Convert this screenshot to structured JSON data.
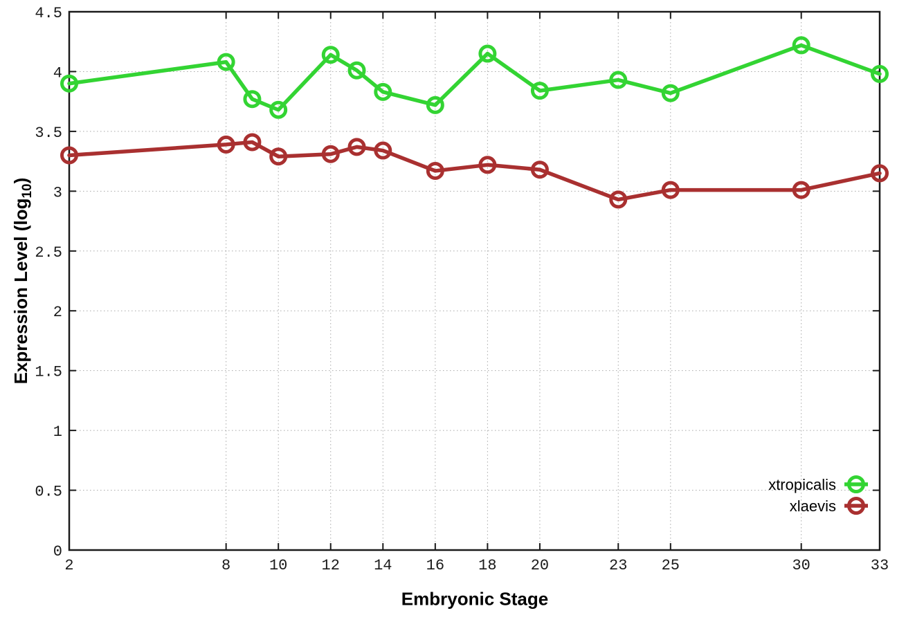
{
  "chart_data": {
    "type": "line",
    "title": "",
    "xlabel": "Embryonic Stage",
    "ylabel": "Expression Level (log10)",
    "ylabel_parts": {
      "pre": "Expression Level (log",
      "sub": "10",
      "post": ")"
    },
    "xlim": [
      2,
      33
    ],
    "ylim": [
      0,
      4.5
    ],
    "grid": true,
    "grid_style": "dotted",
    "legend_position": "bottom-right",
    "x_ticks": [
      {
        "value": 2,
        "label": "2"
      },
      {
        "value": 8,
        "label": "8"
      },
      {
        "value": 10,
        "label": "10"
      },
      {
        "value": 12,
        "label": "12"
      },
      {
        "value": 14,
        "label": "14"
      },
      {
        "value": 16,
        "label": "16"
      },
      {
        "value": 18,
        "label": "18"
      },
      {
        "value": 20,
        "label": "20"
      },
      {
        "value": 23,
        "label": "23"
      },
      {
        "value": 25,
        "label": "25"
      },
      {
        "value": 30,
        "label": "30"
      },
      {
        "value": 33,
        "label": "33"
      }
    ],
    "y_ticks": [
      {
        "value": 0,
        "label": "0"
      },
      {
        "value": 0.5,
        "label": "0.5"
      },
      {
        "value": 1,
        "label": "1"
      },
      {
        "value": 1.5,
        "label": "1.5"
      },
      {
        "value": 2,
        "label": "2"
      },
      {
        "value": 2.5,
        "label": "2.5"
      },
      {
        "value": 3,
        "label": "3"
      },
      {
        "value": 3.5,
        "label": "3.5"
      },
      {
        "value": 4,
        "label": "4"
      },
      {
        "value": 4.5,
        "label": "4.5"
      }
    ],
    "x": [
      2,
      8,
      9,
      10,
      12,
      13,
      14,
      16,
      18,
      20,
      23,
      25,
      30,
      33
    ],
    "series": [
      {
        "name": "xtropicalis",
        "color": "#33d433",
        "marker": "open-circle",
        "values": [
          3.9,
          4.08,
          3.77,
          3.68,
          4.14,
          4.01,
          3.83,
          3.72,
          4.15,
          3.84,
          3.93,
          3.82,
          4.22,
          3.98
        ]
      },
      {
        "name": "xlaevis",
        "color": "#a93030",
        "marker": "open-circle",
        "values": [
          3.3,
          3.39,
          3.41,
          3.29,
          3.31,
          3.37,
          3.34,
          3.17,
          3.22,
          3.18,
          2.93,
          3.01,
          3.01,
          3.15
        ]
      }
    ]
  },
  "style": {
    "border_color": "#1a1a1a",
    "grid_color": "#a8a8a8",
    "background": "#ffffff"
  }
}
